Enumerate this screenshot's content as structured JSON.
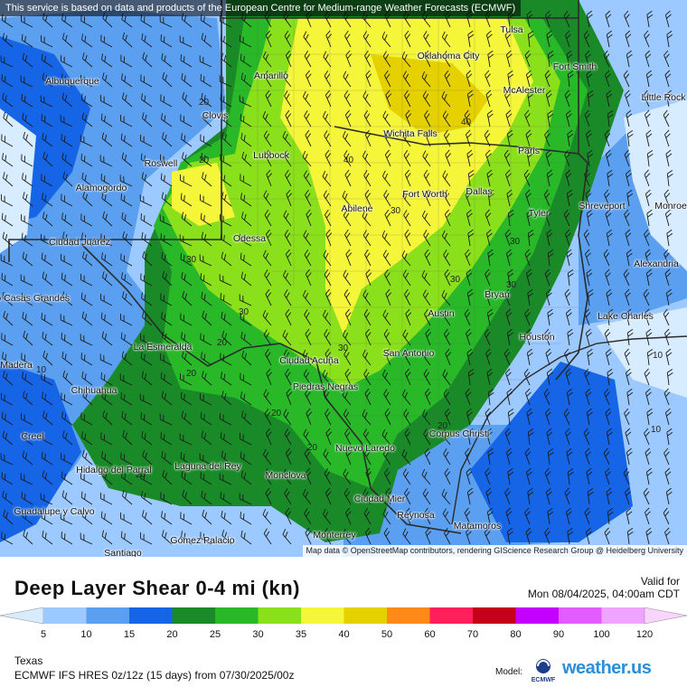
{
  "notice": "This service is based on data and products of the European Centre for Medium-range Weather Forecasts (ECMWF)",
  "attribution": "Map data © OpenStreetMap contributors, rendering GIScience Research Group @ Heidelberg University",
  "legend": {
    "title": "Deep Layer Shear 0-4 mi (kn)",
    "valid_label": "Valid for",
    "valid_time": "Mon 08/04/2025, 04:00am CDT",
    "region": "Texas",
    "run": "ECMWF IFS HRES 0z/12z (15 days) from 07/30/2025/00z",
    "model_label": "Model:",
    "model_logo": "ECMWF",
    "brand": "weather.us",
    "ticks": [
      "5",
      "10",
      "15",
      "20",
      "25",
      "30",
      "35",
      "40",
      "50",
      "60",
      "70",
      "80",
      "90",
      "100",
      "120"
    ],
    "colors": [
      "#d8ecff",
      "#9cc9ff",
      "#5b9ff0",
      "#1565e6",
      "#1a8a28",
      "#28b828",
      "#8ae01a",
      "#f5f53a",
      "#e5d100",
      "#ff8a1a",
      "#ff1f5a",
      "#c4001a",
      "#c400ff",
      "#e25cff",
      "#efa4ff",
      "#f8d4ff"
    ]
  },
  "cities": [
    {
      "name": "Albuquerque"
    },
    {
      "name": "Amarillo"
    },
    {
      "name": "Clovis"
    },
    {
      "name": "Lubbock"
    },
    {
      "name": "Roswell"
    },
    {
      "name": "Alamogordo"
    },
    {
      "name": "Ciudad Juárez"
    },
    {
      "name": "Odessa"
    },
    {
      "name": "Abilene"
    },
    {
      "name": "Fort Worth"
    },
    {
      "name": "Dallas"
    },
    {
      "name": "Oklahoma City"
    },
    {
      "name": "Tulsa"
    },
    {
      "name": "Fort Smith"
    },
    {
      "name": "McAlester"
    },
    {
      "name": "Little Rock"
    },
    {
      "name": "Wichita Falls"
    },
    {
      "name": "Paris"
    },
    {
      "name": "Shreveport"
    },
    {
      "name": "Monroe"
    },
    {
      "name": "Tyler"
    },
    {
      "name": "Alexandria"
    },
    {
      "name": "Bryan"
    },
    {
      "name": "Austin"
    },
    {
      "name": "Lake Charles"
    },
    {
      "name": "Houston"
    },
    {
      "name": "San Antonio"
    },
    {
      "name": "Ciudad Acuña"
    },
    {
      "name": "Piedras Negras"
    },
    {
      "name": "Corpus Christi"
    },
    {
      "name": "Nuevo Laredo"
    },
    {
      "name": "La Esmeralda"
    },
    {
      "name": "Chihuahua"
    },
    {
      "name": "Nuevo Casas Grandes"
    },
    {
      "name": "Madera"
    },
    {
      "name": "Creel"
    },
    {
      "name": "Hidalgo del Parral"
    },
    {
      "name": "Laguna del Rey"
    },
    {
      "name": "Monclova"
    },
    {
      "name": "Guadalupe y Calvo"
    },
    {
      "name": "Ciudad Mier"
    },
    {
      "name": "Reynosa"
    },
    {
      "name": "Matamoros"
    },
    {
      "name": "Monterrey"
    },
    {
      "name": "Gómez Palacio"
    },
    {
      "name": "Santiago"
    }
  ],
  "contour_labels": [
    "20",
    "30",
    "20",
    "40",
    "30",
    "40",
    "30",
    "30",
    "30",
    "20",
    "10",
    "20",
    "30",
    "20",
    "20",
    "20",
    "10",
    "10",
    "20",
    "30"
  ]
}
